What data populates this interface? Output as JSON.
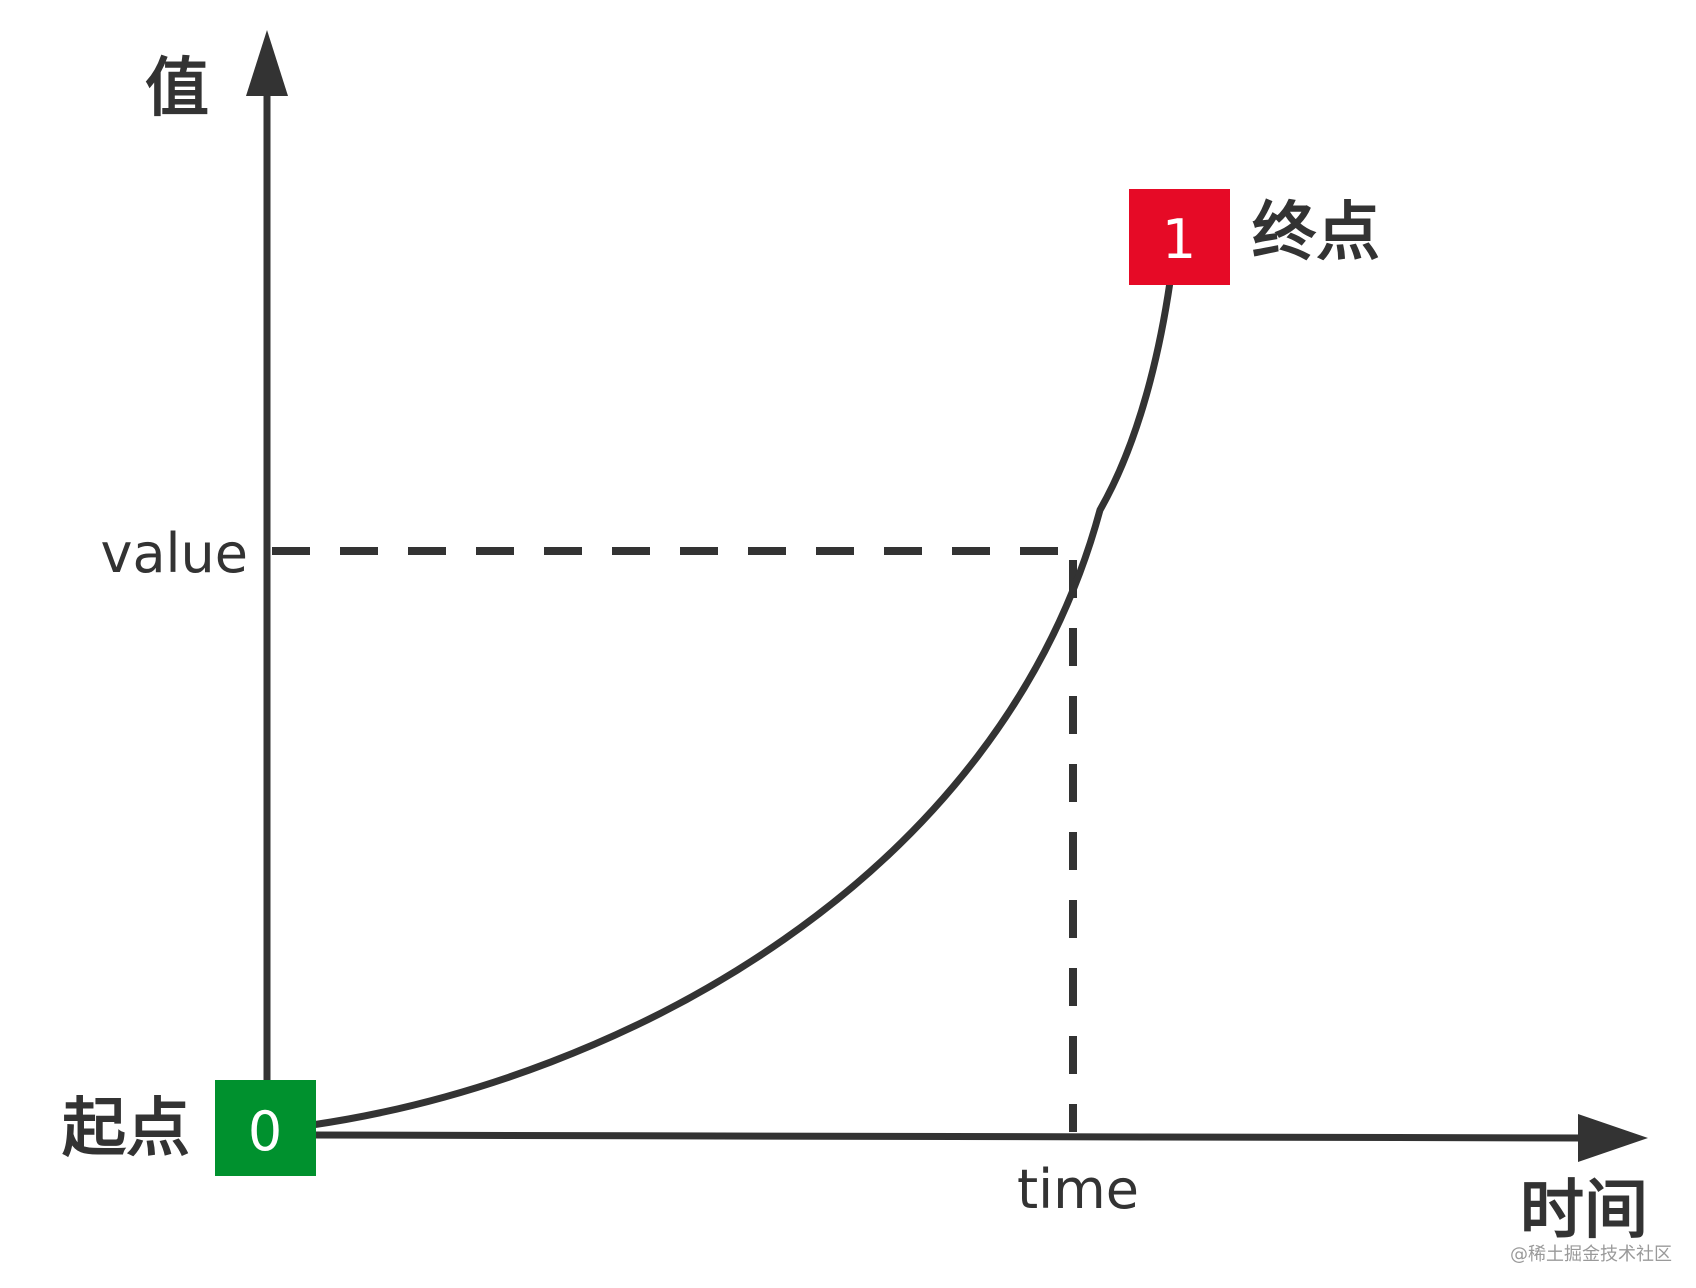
{
  "axes": {
    "y_label": "值",
    "x_label": "时间"
  },
  "guides": {
    "value_label": "value",
    "time_label": "time"
  },
  "start_point": {
    "label": "起点",
    "marker_text": "0",
    "color": "#00912E"
  },
  "end_point": {
    "label": "终点",
    "marker_text": "1",
    "color": "#E60A26"
  },
  "colors": {
    "ink": "#333333"
  },
  "watermark": "@稀土掘金技术社区"
}
